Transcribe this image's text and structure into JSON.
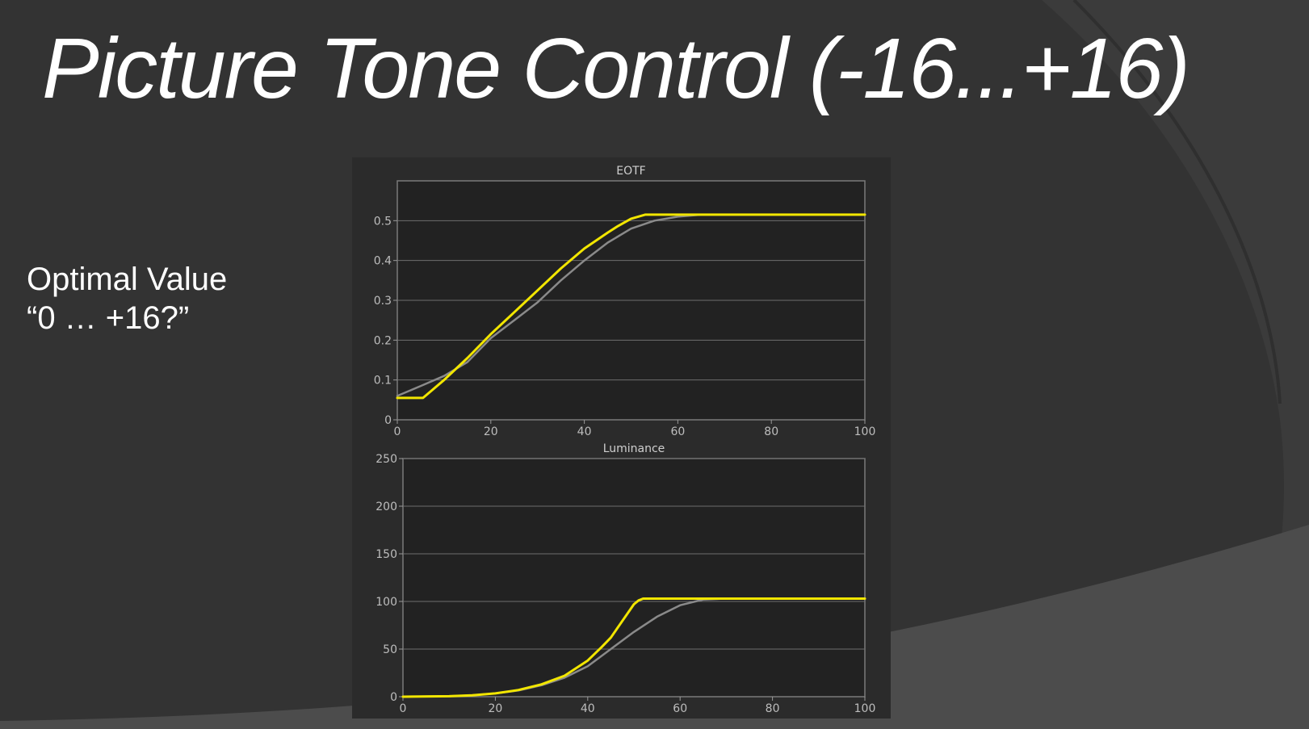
{
  "slide": {
    "title": "Picture Tone Control (-16...+16)",
    "side_line1": "Optimal Value",
    "side_line2": "“0 … +16?”"
  },
  "colors": {
    "background": "#333333",
    "swoosh": "#3c3c3c",
    "plot_background": "#222222",
    "measured": "#f2e600",
    "reference": "#8a8a8a",
    "grid": "#6e6e6e"
  },
  "chart_data": [
    {
      "type": "line",
      "title": "EOTF",
      "xlabel": "",
      "ylabel": "",
      "xlim": [
        0,
        100
      ],
      "ylim": [
        0,
        0.6
      ],
      "xticks": [
        0,
        20,
        40,
        60,
        80,
        100
      ],
      "yticks": [
        0,
        0.1,
        0.2,
        0.3,
        0.4,
        0.5
      ],
      "ytick_labels": [
        "0",
        "0.1",
        "0.2",
        "0.3",
        "0.4",
        "0.5"
      ],
      "grid": true,
      "legend": "none",
      "series": [
        {
          "color": "#8a8a8a",
          "x": [
            0,
            5,
            10,
            15,
            20,
            25,
            30,
            35,
            40,
            45,
            50,
            55,
            60,
            65,
            70,
            80,
            90,
            100
          ],
          "y": [
            0.06,
            0.085,
            0.11,
            0.145,
            0.205,
            0.25,
            0.295,
            0.35,
            0.4,
            0.445,
            0.48,
            0.5,
            0.51,
            0.515,
            0.515,
            0.515,
            0.515,
            0.515
          ]
        },
        {
          "color": "#f2e600",
          "x": [
            0,
            3,
            5.5,
            7,
            10,
            15,
            20,
            25,
            30,
            35,
            40,
            45,
            47,
            50,
            51.5,
            53,
            60,
            80,
            100
          ],
          "y": [
            0.055,
            0.055,
            0.055,
            0.07,
            0.1,
            0.155,
            0.215,
            0.27,
            0.325,
            0.38,
            0.43,
            0.47,
            0.485,
            0.505,
            0.51,
            0.515,
            0.515,
            0.515,
            0.515
          ]
        }
      ]
    },
    {
      "type": "line",
      "title": "Luminance",
      "xlabel": "",
      "ylabel": "",
      "xlim": [
        0,
        100
      ],
      "ylim": [
        0,
        250
      ],
      "xticks": [
        0,
        20,
        40,
        60,
        80,
        100
      ],
      "yticks": [
        0,
        50,
        100,
        150,
        200,
        250
      ],
      "ytick_labels": [
        "0",
        "50",
        "100",
        "150",
        "200",
        "250"
      ],
      "grid": true,
      "legend": "none",
      "series": [
        {
          "color": "#8a8a8a",
          "x": [
            0,
            10,
            15,
            20,
            25,
            30,
            35,
            40,
            45,
            50,
            55,
            60,
            65,
            70,
            80,
            100
          ],
          "y": [
            0,
            0.5,
            1.5,
            3.5,
            6.5,
            12,
            20,
            32,
            50,
            68,
            84,
            96,
            102,
            103,
            103,
            103
          ]
        },
        {
          "color": "#f2e600",
          "x": [
            0,
            10,
            15,
            20,
            25,
            30,
            35,
            40,
            43,
            45,
            47,
            50,
            51,
            52,
            60,
            80,
            100
          ],
          "y": [
            0,
            0.5,
            1.5,
            3.5,
            7,
            13,
            22,
            38,
            52,
            62,
            76,
            97,
            101,
            103,
            103,
            103,
            103
          ]
        }
      ]
    }
  ]
}
